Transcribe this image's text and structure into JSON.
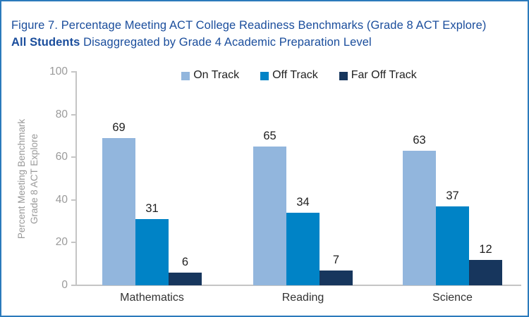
{
  "figure": {
    "title_line1": "Figure 7. Percentage Meeting ACT College Readiness Benchmarks (Grade 8 ACT Explore)",
    "title_line2_bold": "All Students",
    "title_line2_rest": " Disaggregated by Grade 4 Academic Preparation Level"
  },
  "colors": {
    "frame_border": "#2b7abc",
    "title_text": "#1a4d9c",
    "on_track": "#92b6dd",
    "off_track": "#0083c6",
    "far_off_track": "#17365d",
    "axis_line": "#c5c5c5",
    "axis_text": "#9a9a9a",
    "value_text": "#1f1f1f",
    "category_text": "#333333"
  },
  "chart_data": {
    "type": "bar",
    "categories": [
      "Mathematics",
      "Reading",
      "Science"
    ],
    "series": [
      {
        "name": "On Track",
        "color": "#92b6dd",
        "values": [
          69,
          65,
          63
        ]
      },
      {
        "name": "Off Track",
        "color": "#0083c6",
        "values": [
          31,
          34,
          37
        ]
      },
      {
        "name": "Far Off Track",
        "color": "#17365d",
        "values": [
          6,
          7,
          12
        ]
      }
    ],
    "ylabel_line1": "Percent Meeting Benchmark",
    "ylabel_line2": "Grade 8 ACT Explore",
    "ylim": [
      0,
      100
    ],
    "yticks": [
      0,
      20,
      40,
      60,
      80,
      100
    ],
    "legend_position": "top",
    "grid": false,
    "value_labels": true
  }
}
